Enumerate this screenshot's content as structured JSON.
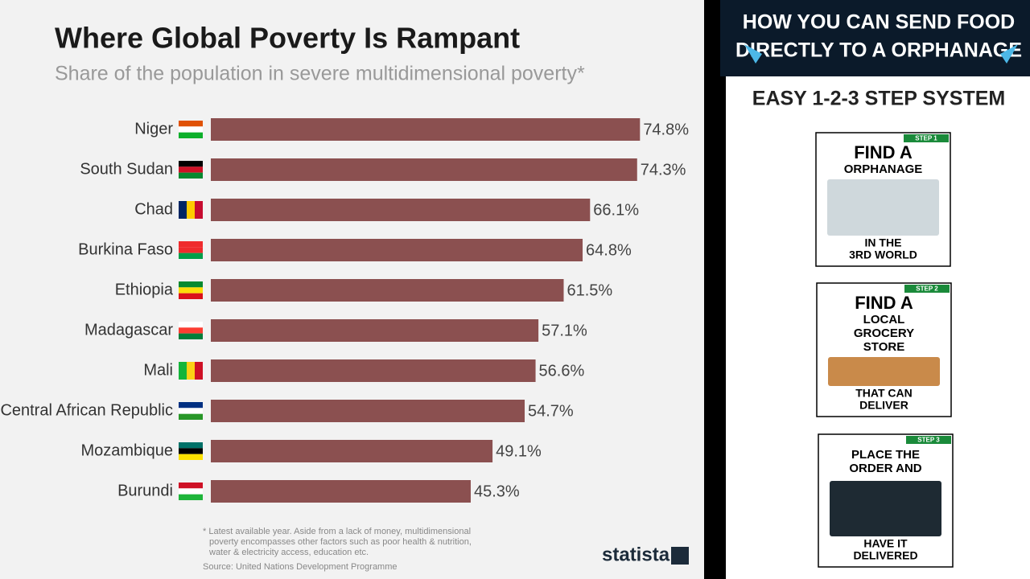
{
  "chart_data": {
    "type": "hbar",
    "title": "Where Global Poverty Is Rampant",
    "subtitle": "Share of the population in severe multidimensional poverty*",
    "categories": [
      "Niger",
      "South Sudan",
      "Chad",
      "Burkina Faso",
      "Ethiopia",
      "Madagascar",
      "Mali",
      "Central African Republic",
      "Mozambique",
      "Burundi"
    ],
    "values": [
      74.8,
      74.3,
      66.1,
      64.8,
      61.5,
      57.1,
      56.6,
      54.7,
      49.1,
      45.3
    ],
    "value_labels": [
      "74.8%",
      "74.3%",
      "66.1%",
      "64.8%",
      "61.5%",
      "57.1%",
      "56.6%",
      "54.7%",
      "49.1%",
      "45.3%"
    ],
    "color": "#8b5050",
    "footnote": [
      "* Latest available year. Aside from a lack of money, multidimensional",
      "poverty encompasses other factors such as poor health & nutrition,",
      "water & electricity access, education etc."
    ],
    "source": "Source: United Nations Development Programme",
    "brand": "statista"
  },
  "sidebar": {
    "banner": [
      "HOW YOU CAN SEND FOOD",
      "DIRECTLY TO A ORPHANAGE"
    ],
    "heading": "EASY 1-2-3 STEP SYSTEM",
    "steps": [
      {
        "tag": "STEP 1",
        "top": [
          "FIND A",
          "ORPHANAGE"
        ],
        "bottom": [
          "IN THE",
          "3RD WORLD"
        ]
      },
      {
        "tag": "STEP 2",
        "top": [
          "FIND A",
          "LOCAL",
          "GROCERY",
          "STORE"
        ],
        "bottom": [
          "THAT CAN",
          "DELIVER"
        ]
      },
      {
        "tag": "STEP 3",
        "top": [
          "PLACE THE",
          "ORDER AND"
        ],
        "bottom": [
          "HAVE IT",
          "DELIVERED"
        ]
      }
    ]
  }
}
